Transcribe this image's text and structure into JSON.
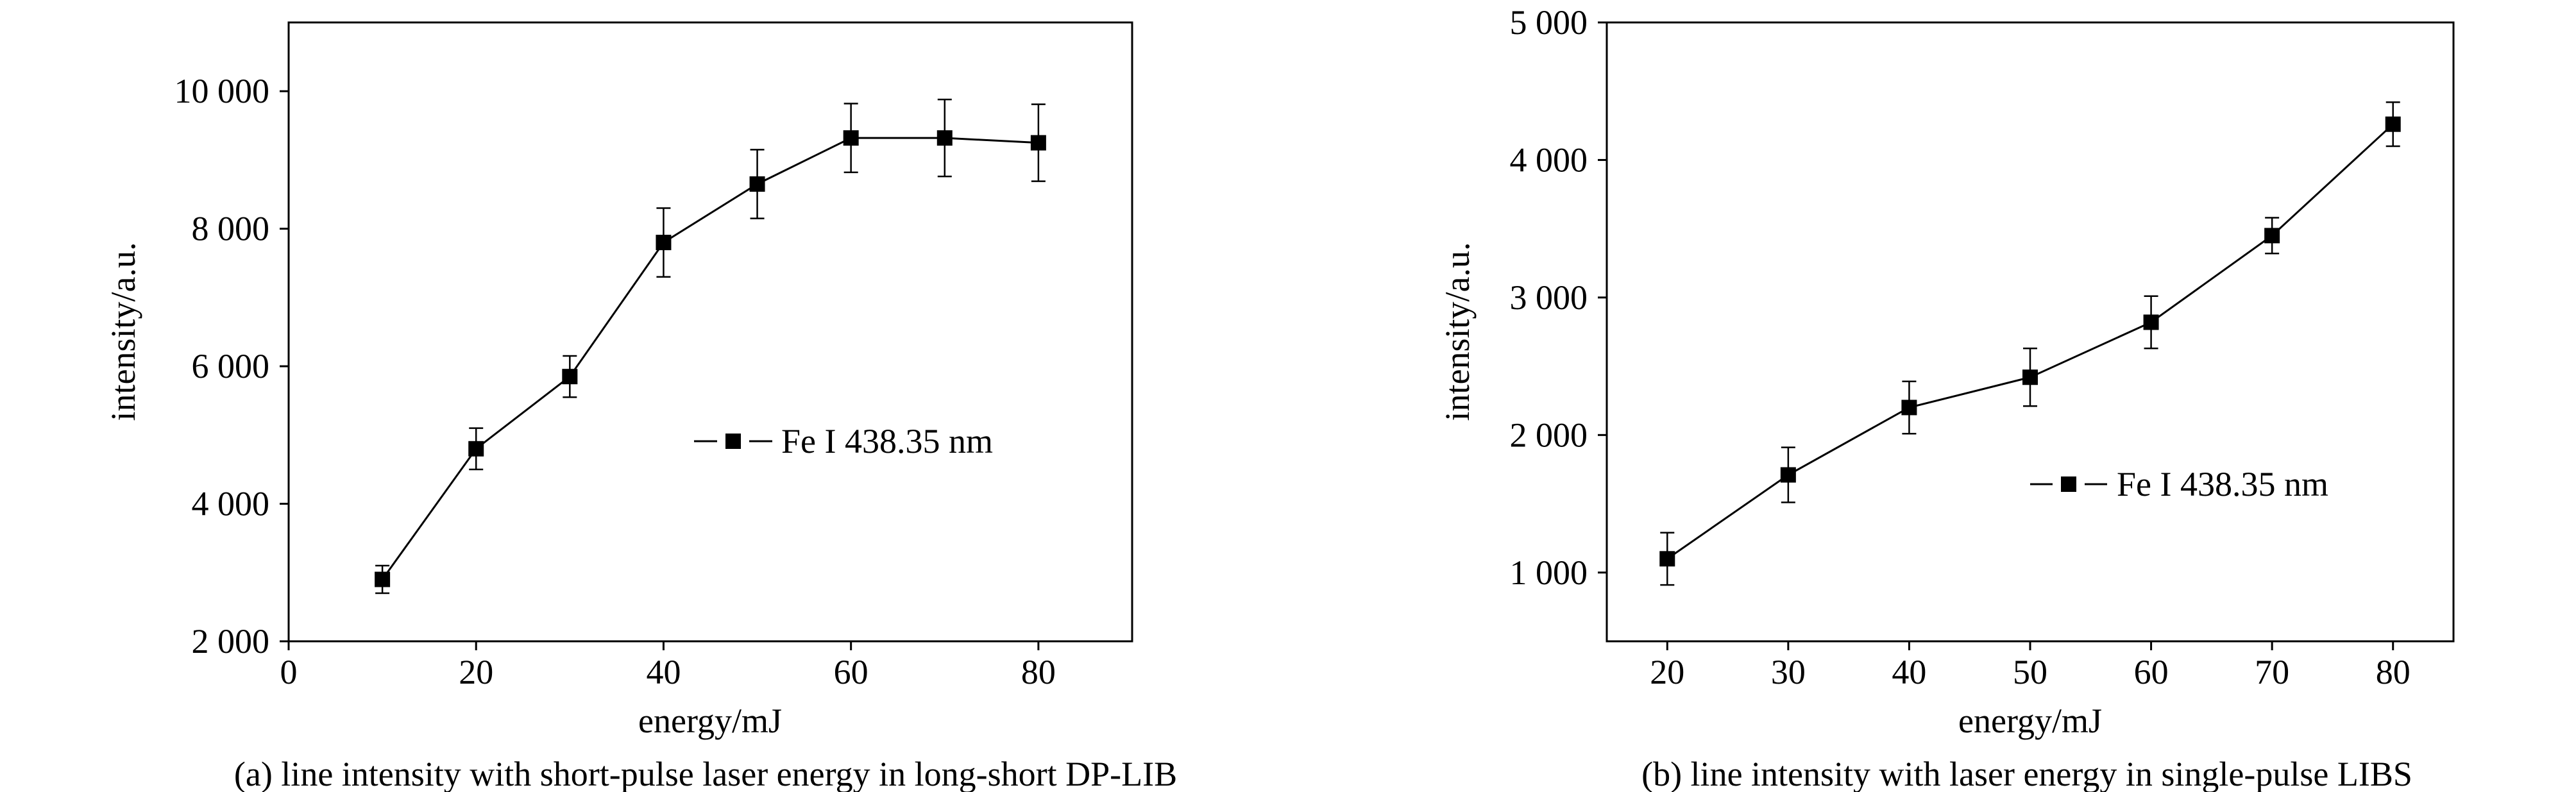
{
  "chart_data": [
    {
      "type": "line",
      "title": "",
      "caption": "(a) line intensity with short-pulse laser energy in long-short DP-LIB",
      "xlabel": "energy/mJ",
      "ylabel": "intensity/a.u.",
      "xlim": [
        0,
        90
      ],
      "ylim": [
        2000,
        11000
      ],
      "xticks": [
        0,
        20,
        40,
        60,
        80
      ],
      "xtick_labels": [
        "0",
        "20",
        "40",
        "60",
        "80"
      ],
      "yticks": [
        2000,
        4000,
        6000,
        8000,
        10000
      ],
      "ytick_labels": [
        "2 000",
        "4 000",
        "6 000",
        "8 000",
        "10 000"
      ],
      "legend_position": "center-right",
      "grid": false,
      "series": [
        {
          "name": "Fe I 438.35 nm",
          "marker": "square",
          "color": "#000000",
          "x": [
            10,
            20,
            30,
            40,
            50,
            60,
            70,
            80
          ],
          "y": [
            2900,
            4800,
            5850,
            7800,
            8650,
            9320,
            9320,
            9250
          ],
          "error": [
            200,
            300,
            300,
            500,
            500,
            500,
            560,
            560
          ]
        }
      ]
    },
    {
      "type": "line",
      "title": "",
      "caption": "(b) line intensity with laser energy in single-pulse LIBS",
      "xlabel": "energy/mJ",
      "ylabel": "intensity/a.u.",
      "xlim": [
        15,
        85
      ],
      "ylim": [
        500,
        5000
      ],
      "xticks": [
        20,
        30,
        40,
        50,
        60,
        70,
        80
      ],
      "xtick_labels": [
        "20",
        "30",
        "40",
        "50",
        "60",
        "70",
        "80"
      ],
      "yticks": [
        1000,
        2000,
        3000,
        4000,
        5000
      ],
      "ytick_labels": [
        "1 000",
        "2 000",
        "3 000",
        "4 000",
        "5 000"
      ],
      "legend_position": "lower-right",
      "grid": false,
      "series": [
        {
          "name": "Fe I 438.35 nm",
          "marker": "square",
          "color": "#000000",
          "x": [
            20,
            30,
            40,
            50,
            60,
            70,
            80
          ],
          "y": [
            1100,
            1710,
            2200,
            2420,
            2820,
            3450,
            4260
          ],
          "error": [
            190,
            200,
            190,
            210,
            190,
            130,
            160
          ]
        }
      ]
    }
  ]
}
